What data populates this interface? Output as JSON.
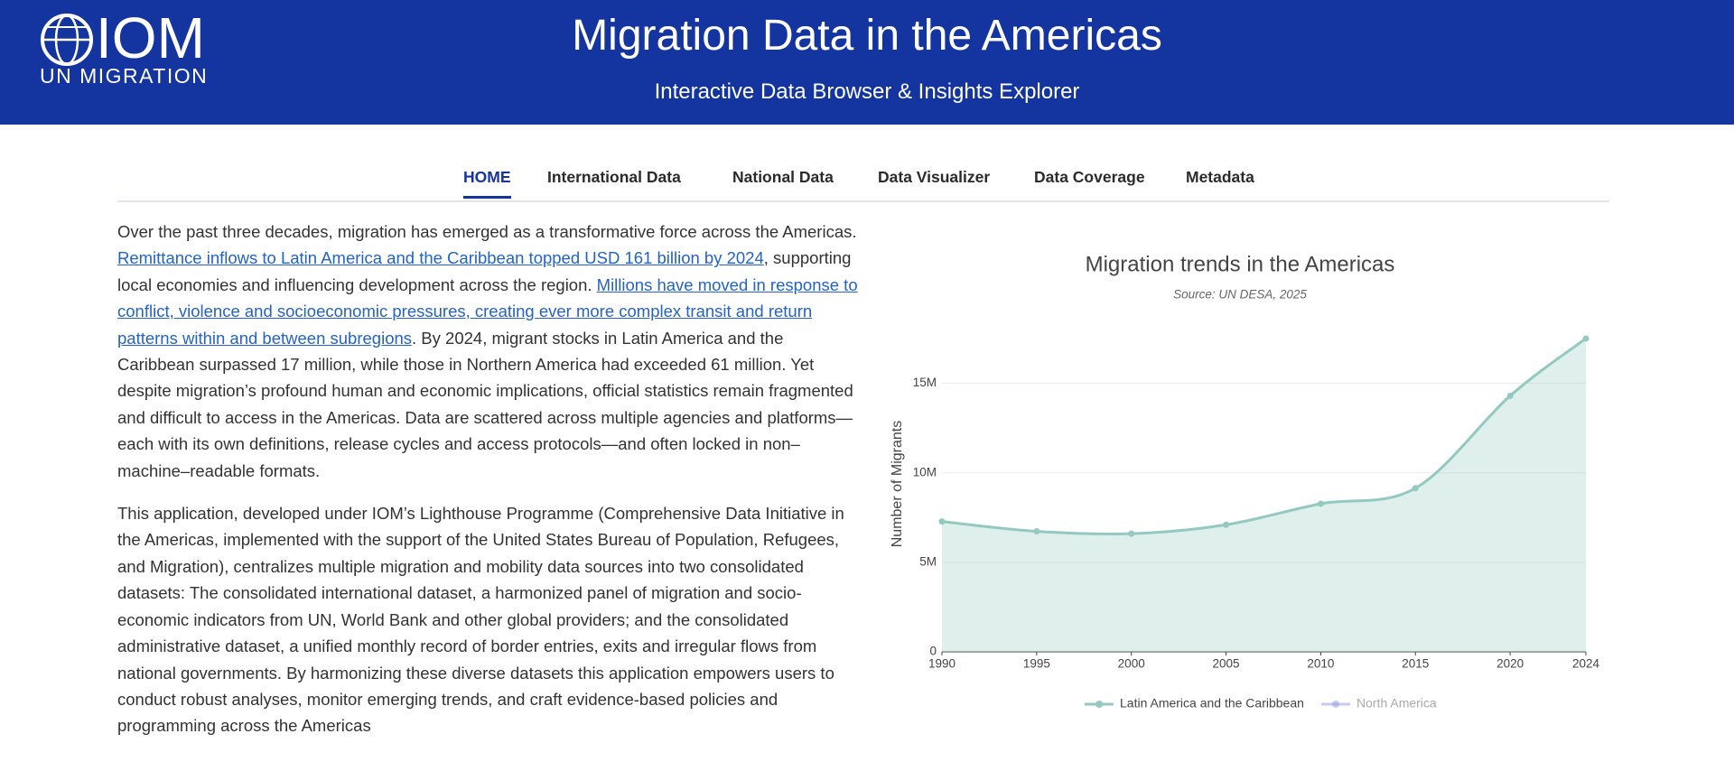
{
  "header": {
    "logo_text": "IOM",
    "logo_subtext": "UN MIGRATION",
    "title": "Migration Data in the Americas",
    "subtitle": "Interactive Data Browser & Insights Explorer"
  },
  "nav": {
    "items": [
      "HOME",
      "International Data",
      "National Data",
      "Data Visualizer",
      "Data Coverage",
      "Metadata"
    ],
    "active": 0
  },
  "paragraphs": [
    [
      {
        "text": "Over the past three decades, migration has emerged as a transformative force across the Americas. "
      },
      {
        "text": "Remittance inflows to Latin America and the Caribbean topped USD 161 billion by 2024",
        "link": true
      },
      {
        "text": ", supporting local economies and influencing development across the region. "
      },
      {
        "text": "Millions have moved in response to conflict, violence and socioeconomic pressures, creating ever more complex transit and return patterns within and between subregions",
        "link": true
      },
      {
        "text": ". By 2024, migrant stocks in Latin America and the Caribbean surpassed 17 million, while those in Northern America had exceeded 61 million. Yet despite migration’s profound human and economic implications, official statistics remain fragmented and difficult to access in the Americas. Data are scattered across multiple agencies and platforms—each with its own definitions, release cycles and access protocols—and often locked in non–machine–readable formats."
      }
    ],
    [
      {
        "text": "This application, developed under IOM’s Lighthouse Programme (Comprehensive Data Initiative in the Americas, implemented with the support of the United States Bureau of Population, Refugees, and Migration), centralizes multiple migration and mobility data sources into two consolidated datasets: The consolidated international dataset, a harmonized panel of migration and socio-economic indicators from UN, World Bank and other global providers; and the consolidated administrative dataset, a unified monthly record of border entries, exits and irregular flows from national governments. By harmonizing these diverse datasets this application empowers users to conduct robust analyses, monitor emerging trends, and craft evidence-based policies and programming across the Americas"
      }
    ]
  ],
  "chart_data": {
    "type": "area",
    "title": "Migration trends in the Americas",
    "subtitle": "Source: UN DESA, 2025",
    "y_label": "Number of Migrants",
    "x": [
      1990,
      1995,
      2000,
      2005,
      2010,
      2015,
      2020,
      2024
    ],
    "series": [
      {
        "name": "Latin America and the Caribbean",
        "color": "#93c9c1",
        "visible": true,
        "values": [
          7280000,
          6730000,
          6600000,
          7100000,
          8270000,
          9140000,
          14300000,
          17500000
        ]
      },
      {
        "name": "North America",
        "color": "#8c9be0",
        "visible": false,
        "values": [
          null,
          null,
          null,
          null,
          null,
          null,
          null,
          null
        ]
      }
    ],
    "xlim": [
      1990,
      2024
    ],
    "xticks": [
      1990,
      1995,
      2000,
      2005,
      2010,
      2015,
      2020,
      2024
    ],
    "ylim": [
      0,
      17600000
    ],
    "yticks": [
      0,
      {
        "value": 5000000,
        "label": "5M"
      },
      {
        "value": 10000000,
        "label": "10M"
      },
      {
        "value": 15000000,
        "label": "15M"
      }
    ],
    "grid": true,
    "legend": "bottom"
  }
}
